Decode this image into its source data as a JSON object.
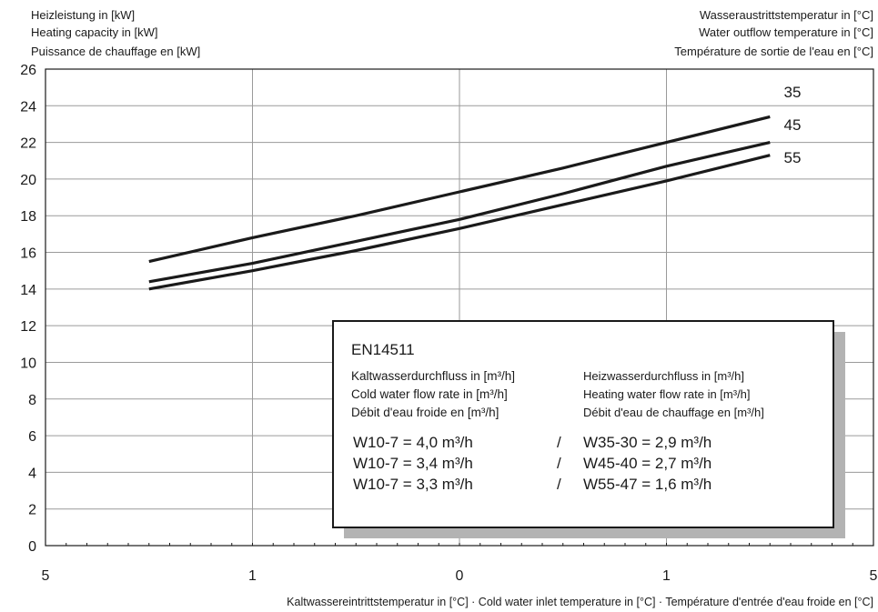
{
  "chart_data": {
    "type": "line",
    "ylabel_lines": [
      "Heizleistung in [kW]",
      "Heating capacity in [kW]",
      "Puissance de chauffage en [kW]"
    ],
    "series_title_lines": [
      "Wasseraustrittstemperatur in [°C]",
      "Water outflow temperature in [°C]",
      "Température de sortie de l'eau en [°C]"
    ],
    "xlabel": "Kaltwassereintrittstemperatur in [°C] · Cold water inlet temperature in [°C] · Température d'entrée d'eau froide en [°C]",
    "ylim": [
      0,
      26
    ],
    "y_ticks": [
      0,
      2,
      4,
      6,
      8,
      10,
      12,
      14,
      16,
      18,
      20,
      22,
      24,
      26
    ],
    "xlim": [
      -15,
      25
    ],
    "x_ticks": [
      -15,
      -5,
      5,
      15,
      25
    ],
    "x_tick_labels": [
      "5",
      "1",
      "0",
      "1",
      "5"
    ],
    "grid": true,
    "x": [
      -10,
      -5,
      0,
      5,
      10,
      15,
      20
    ],
    "series": [
      {
        "name": "35",
        "values": [
          15.5,
          16.8,
          18.0,
          19.3,
          20.6,
          22.0,
          23.4
        ]
      },
      {
        "name": "45",
        "values": [
          14.4,
          15.4,
          16.6,
          17.8,
          19.2,
          20.7,
          22.0
        ]
      },
      {
        "name": "55",
        "values": [
          14.0,
          15.0,
          16.1,
          17.3,
          18.6,
          19.9,
          21.3
        ]
      }
    ],
    "series_labels": [
      "35",
      "45",
      "55"
    ],
    "line_color": "#1a1a1a"
  },
  "infobox": {
    "title": "EN14511",
    "left_header": [
      "Kaltwasserdurchfluss in [m³/h]",
      "Cold water flow rate in [m³/h]",
      "Débit d'eau froide en [m³/h]"
    ],
    "right_header": [
      "Heizwasserdurchfluss in [m³/h]",
      "Heating water flow rate in [m³/h]",
      "Débit d'eau de chauffage en [m³/h]"
    ],
    "separator": "/",
    "rows": [
      {
        "left": "W10-7 = 4,0 m³/h",
        "right": "W35-30 = 2,9 m³/h"
      },
      {
        "left": "W10-7 = 3,4 m³/h",
        "right": "W45-40 = 2,7 m³/h"
      },
      {
        "left": "W10-7 = 3,3 m³/h",
        "right": "W55-47 = 1,6 m³/h"
      }
    ]
  }
}
